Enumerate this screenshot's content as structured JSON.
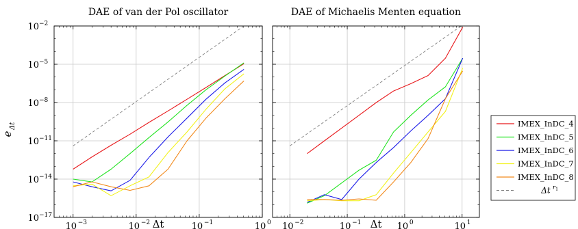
{
  "figure": {
    "ylabel": "e",
    "ylabel_sub": "Δt"
  },
  "legend": {
    "placement": "right",
    "items": [
      {
        "label": "IMEX_InDC_4",
        "color": "#e8191c",
        "dashed": false
      },
      {
        "label": "IMEX_InDC_5",
        "color": "#21e321",
        "dashed": false
      },
      {
        "label": "IMEX_InDC_6",
        "color": "#1c1ce8",
        "dashed": false
      },
      {
        "label": "IMEX_InDC_7",
        "color": "#f2f21c",
        "dashed": false
      },
      {
        "label": "IMEX_InDC_8",
        "color": "#f28a1c",
        "dashed": false
      },
      {
        "label": "Δt",
        "label_sup": "r",
        "label_sup_sub": "1",
        "color": "#808080",
        "dashed": true
      }
    ]
  },
  "chart_data": [
    {
      "type": "line",
      "title": "DAE of van der Pol oscillator",
      "xlabel": "Δt",
      "ylabel": "eΔt",
      "xscale": "log",
      "yscale": "log",
      "xlim": [
        0.0005,
        1
      ],
      "ylim": [
        1e-17,
        0.01
      ],
      "grid": true,
      "xticks": [
        {
          "value": 0.001,
          "label": "10",
          "sup": "−3"
        },
        {
          "value": 0.01,
          "label": "10",
          "sup": "−2"
        },
        {
          "value": 0.1,
          "label": "10",
          "sup": "−1"
        },
        {
          "value": 1,
          "label": "10",
          "sup": "0"
        }
      ],
      "yticks": [
        {
          "value": 1e-17,
          "label": "10",
          "sup": "−17"
        },
        {
          "value": 1e-14,
          "label": "10",
          "sup": "−14"
        },
        {
          "value": 1e-11,
          "label": "10",
          "sup": "−11"
        },
        {
          "value": 1e-08,
          "label": "10",
          "sup": "−8"
        },
        {
          "value": 1e-05,
          "label": "10",
          "sup": "−5"
        },
        {
          "value": 0.01,
          "label": "10",
          "sup": "−2"
        }
      ],
      "series": [
        {
          "name": "IMEX_InDC_4",
          "color": "#e8191c",
          "x": [
            0.001,
            0.002,
            0.004,
            0.008,
            0.016,
            0.032,
            0.064,
            0.128,
            0.256,
            0.512
          ],
          "y": [
            6e-14,
            5.5e-13,
            4.5e-12,
            3.3e-11,
            2.8e-10,
            2.2e-09,
            1.8e-08,
            1.5e-07,
            1.3e-06,
            1.1e-05
          ]
        },
        {
          "name": "IMEX_InDC_5",
          "color": "#21e321",
          "x": [
            0.001,
            0.002,
            0.004,
            0.008,
            0.016,
            0.032,
            0.064,
            0.128,
            0.256,
            0.512
          ],
          "y": [
            1e-14,
            6e-15,
            6e-14,
            1e-12,
            1.8e-11,
            3e-10,
            6e-09,
            1e-07,
            1.2e-06,
            1.3e-05
          ]
        },
        {
          "name": "IMEX_InDC_6",
          "color": "#1c1ce8",
          "x": [
            0.001,
            0.002,
            0.004,
            0.008,
            0.016,
            0.032,
            0.064,
            0.128,
            0.256,
            0.512
          ],
          "y": [
            6e-15,
            2.5e-15,
            1.2e-15,
            8e-15,
            5e-13,
            2e-11,
            6e-10,
            1.8e-08,
            3.5e-07,
            4e-06
          ]
        },
        {
          "name": "IMEX_InDC_7",
          "color": "#f2f21c",
          "x": [
            0.001,
            0.002,
            0.004,
            0.008,
            0.016,
            0.032,
            0.064,
            0.128,
            0.256,
            0.512
          ],
          "y": [
            3e-15,
            4e-15,
            5e-16,
            3e-15,
            1.5e-14,
            1.2e-12,
            5e-11,
            3e-09,
            1.2e-07,
            1.8e-06
          ]
        },
        {
          "name": "IMEX_InDC_8",
          "color": "#f28a1c",
          "x": [
            0.001,
            0.002,
            0.004,
            0.008,
            0.016,
            0.032,
            0.064,
            0.128,
            0.256,
            0.512
          ],
          "y": [
            2.5e-15,
            6e-15,
            2.5e-15,
            1.3e-15,
            3e-15,
            6e-14,
            1e-11,
            6e-10,
            2e-08,
            5e-07
          ]
        },
        {
          "name": "Δt^r1",
          "color": "#808080",
          "dashed": true,
          "x": [
            0.001,
            0.512
          ],
          "y": [
            4e-12,
            0.01
          ]
        }
      ]
    },
    {
      "type": "line",
      "title": "DAE of Michaelis Menten equation",
      "xlabel": "Δt",
      "ylabel": "eΔt",
      "xscale": "log",
      "yscale": "log",
      "xlim": [
        0.005,
        20
      ],
      "ylim": [
        1e-17,
        0.01
      ],
      "grid": true,
      "xticks": [
        {
          "value": 0.01,
          "label": "10",
          "sup": "−2"
        },
        {
          "value": 0.1,
          "label": "10",
          "sup": "−1"
        },
        {
          "value": 1,
          "label": "10",
          "sup": "0"
        },
        {
          "value": 10,
          "label": "10",
          "sup": "1"
        }
      ],
      "yticks": [
        {
          "value": 1e-17,
          "label": "",
          "sup": ""
        },
        {
          "value": 1e-14,
          "label": "",
          "sup": ""
        },
        {
          "value": 1e-11,
          "label": "",
          "sup": ""
        },
        {
          "value": 1e-08,
          "label": "",
          "sup": ""
        },
        {
          "value": 1e-05,
          "label": "",
          "sup": ""
        },
        {
          "value": 0.01,
          "label": "",
          "sup": ""
        }
      ],
      "series": [
        {
          "name": "IMEX_InDC_4",
          "color": "#e8191c",
          "x": [
            0.02,
            0.04,
            0.08,
            0.16,
            0.32,
            0.64,
            1.28,
            2.56,
            5.12,
            10.24
          ],
          "y": [
            1e-12,
            1e-11,
            1e-10,
            1e-09,
            1e-08,
            8e-08,
            3e-07,
            1.3e-06,
            3e-05,
            0.008
          ]
        },
        {
          "name": "IMEX_InDC_5",
          "color": "#21e321",
          "x": [
            0.02,
            0.04,
            0.08,
            0.16,
            0.32,
            0.64,
            1.28,
            2.56,
            5.12,
            10.24
          ],
          "y": [
            1.3e-16,
            5e-16,
            5e-15,
            5e-14,
            3e-13,
            5e-11,
            1e-09,
            1.6e-08,
            1.7e-07,
            3e-05
          ]
        },
        {
          "name": "IMEX_InDC_6",
          "color": "#1c1ce8",
          "x": [
            0.02,
            0.04,
            0.08,
            0.16,
            0.32,
            0.64,
            1.28,
            2.56,
            5.12,
            10.24
          ],
          "y": [
            1.5e-16,
            6e-16,
            2.5e-16,
            1e-14,
            2e-13,
            3e-12,
            6e-11,
            1e-09,
            2e-08,
            3e-05
          ]
        },
        {
          "name": "IMEX_InDC_7",
          "color": "#f2f21c",
          "x": [
            0.02,
            0.04,
            0.08,
            0.16,
            0.32,
            0.64,
            1.28,
            2.56,
            5.12,
            10.24
          ],
          "y": [
            2e-16,
            2.5e-16,
            2e-16,
            2e-16,
            6e-16,
            3e-14,
            1.2e-12,
            5e-11,
            2e-09,
            5e-06
          ]
        },
        {
          "name": "IMEX_InDC_8",
          "color": "#f28a1c",
          "x": [
            0.02,
            0.04,
            0.08,
            0.16,
            0.32,
            0.64,
            1.28,
            2.56,
            5.12,
            10.24
          ],
          "y": [
            2.5e-16,
            2.5e-16,
            2.2e-16,
            2.8e-16,
            2.2e-16,
            6e-15,
            2e-13,
            1.5e-11,
            2e-08,
            3e-06
          ]
        },
        {
          "name": "Δt^r1",
          "color": "#808080",
          "dashed": true,
          "x": [
            0.01,
            10.24
          ],
          "y": [
            4e-12,
            0.012
          ]
        }
      ]
    }
  ]
}
